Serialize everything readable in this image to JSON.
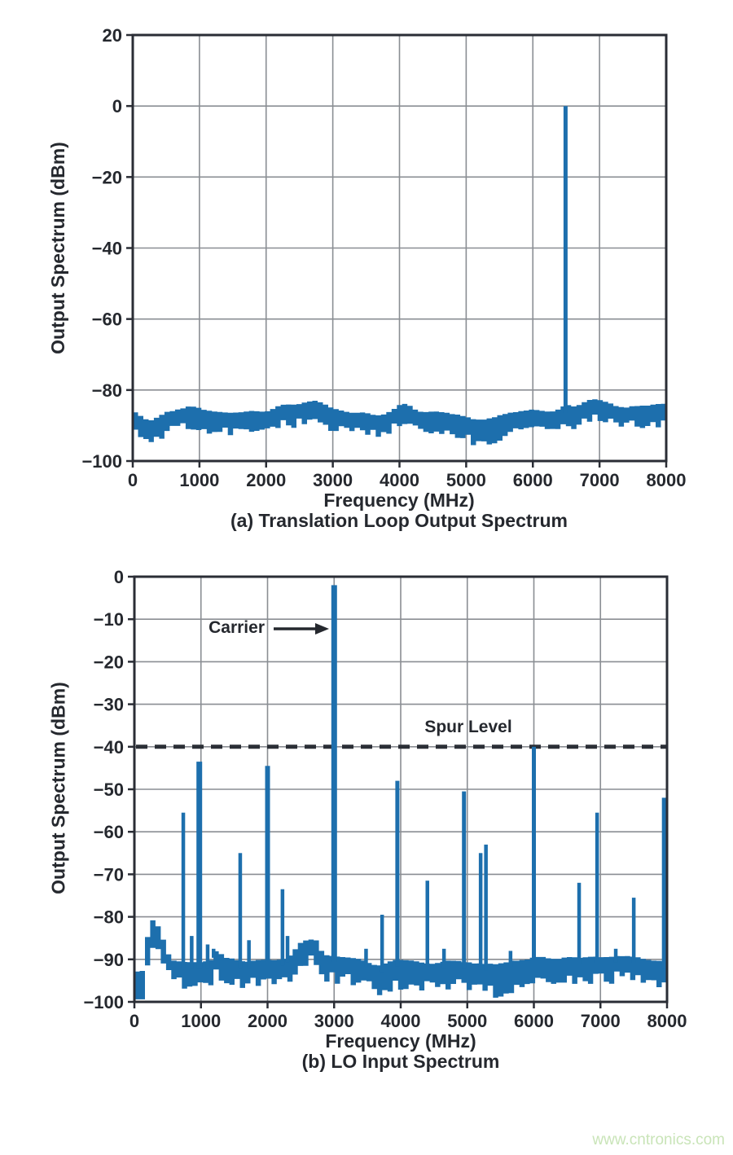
{
  "page": {
    "background": "#ffffff",
    "text_color": "#25282e",
    "watermark": {
      "text": "www.cntronics.com",
      "color": "#c9e4b8"
    }
  },
  "chart_data": [
    {
      "type": "area",
      "title": "(a) Translation Loop Output Spectrum",
      "xlabel": "Frequency (MHz)",
      "ylabel": "Output Spectrum (dBm)",
      "xlim": [
        0,
        8000
      ],
      "ylim": [
        -100,
        20
      ],
      "xticks": [
        0,
        1000,
        2000,
        3000,
        4000,
        5000,
        6000,
        7000,
        8000
      ],
      "xticklabels": [
        "0",
        "1000",
        "2000",
        "3000",
        "4000",
        "5000",
        "6000",
        "7000",
        "8000"
      ],
      "yticks": [
        20,
        0,
        -20,
        -40,
        -60,
        -80,
        -100
      ],
      "yticklabels": [
        "20",
        "0",
        "−20",
        "−40",
        "−60",
        "−80",
        "−100"
      ],
      "grid": true,
      "series_color": "#1d6fad",
      "axis_color": "#2a2d35",
      "grid_color": "#8a8e93",
      "peaks": [
        {
          "freq_mhz": 6490,
          "level_dbm": 0,
          "w": 5
        }
      ],
      "noise_floor": {
        "typical_top_dbm": -85.8,
        "typical_bottom_dbm": -90.5,
        "min_dbm": -93.5,
        "max_dbm": -82.5,
        "top_variation_db": 1.4,
        "thickness_base_db": 4.0,
        "thickness_var_db": 2.6,
        "bumps": [
          [
            900,
            170,
            1.2
          ],
          [
            2650,
            250,
            2.6
          ],
          [
            4050,
            130,
            1.6
          ],
          [
            6500,
            80,
            1.6
          ],
          [
            6950,
            220,
            3.0
          ],
          [
            7800,
            170,
            1.6
          ]
        ],
        "dips": [
          [
            260,
            140,
            -2.6
          ],
          [
            3650,
            220,
            -1.5
          ],
          [
            5150,
            260,
            -2.4
          ]
        ],
        "bottom_dips": [
          [
            250,
            160,
            -1.5
          ],
          [
            5200,
            320,
            -1.0
          ]
        ]
      }
    },
    {
      "type": "area",
      "title": "(b) LO Input Spectrum",
      "xlabel": "Frequency (MHz)",
      "ylabel": "Output Spectrum (dBm)",
      "xlim": [
        0,
        8000
      ],
      "ylim": [
        -100,
        0
      ],
      "xticks": [
        0,
        1000,
        2000,
        3000,
        4000,
        5000,
        6000,
        7000,
        8000
      ],
      "xticklabels": [
        "0",
        "1000",
        "2000",
        "3000",
        "4000",
        "5000",
        "6000",
        "7000",
        "8000"
      ],
      "yticks": [
        0,
        -10,
        -20,
        -30,
        -40,
        -50,
        -60,
        -70,
        -80,
        -90,
        -100
      ],
      "yticklabels": [
        "0",
        "−10",
        "−20",
        "−30",
        "−40",
        "−50",
        "−60",
        "−70",
        "−80",
        "−90",
        "−100"
      ],
      "grid": true,
      "series_color": "#1d6fad",
      "axis_color": "#2a2d35",
      "grid_color": "#8a8e93",
      "carrier": {
        "freq_mhz": 3000,
        "level_dbm": -2,
        "w": 7,
        "label": "Carrier"
      },
      "spur_level_line": {
        "level_dbm": -40,
        "label": "Spur Level",
        "color": "#2b2f36"
      },
      "spurs": [
        {
          "freq_mhz": 734,
          "level_dbm": -55.5
        },
        {
          "freq_mhz": 860,
          "level_dbm": -84.5
        },
        {
          "freq_mhz": 975,
          "level_dbm": -43.5,
          "w": 7
        },
        {
          "freq_mhz": 1100,
          "level_dbm": -86.5
        },
        {
          "freq_mhz": 1190,
          "level_dbm": -87.5
        },
        {
          "freq_mhz": 1590,
          "level_dbm": -65
        },
        {
          "freq_mhz": 1720,
          "level_dbm": -85.5
        },
        {
          "freq_mhz": 2000,
          "level_dbm": -44.5,
          "w": 6
        },
        {
          "freq_mhz": 2225,
          "level_dbm": -73.5
        },
        {
          "freq_mhz": 2300,
          "level_dbm": -84.5
        },
        {
          "freq_mhz": 3480,
          "level_dbm": -87.5
        },
        {
          "freq_mhz": 3720,
          "level_dbm": -79.5
        },
        {
          "freq_mhz": 3950,
          "level_dbm": -48,
          "w": 5
        },
        {
          "freq_mhz": 4400,
          "level_dbm": -71.5
        },
        {
          "freq_mhz": 4650,
          "level_dbm": -87.5
        },
        {
          "freq_mhz": 4950,
          "level_dbm": -50.5,
          "w": 5
        },
        {
          "freq_mhz": 5200,
          "level_dbm": -65
        },
        {
          "freq_mhz": 5280,
          "level_dbm": -63
        },
        {
          "freq_mhz": 5650,
          "level_dbm": -88
        },
        {
          "freq_mhz": 6000,
          "level_dbm": -40,
          "w": 5
        },
        {
          "freq_mhz": 6680,
          "level_dbm": -72
        },
        {
          "freq_mhz": 6950,
          "level_dbm": -55.5
        },
        {
          "freq_mhz": 7230,
          "level_dbm": -87.5
        },
        {
          "freq_mhz": 7500,
          "level_dbm": -75.5
        },
        {
          "freq_mhz": 7960,
          "level_dbm": -52,
          "w": 6
        }
      ],
      "noise_floor": {
        "typical_top_dbm": -90.0,
        "typical_bottom_dbm": -94.0,
        "min_dbm": -97.0,
        "max_dbm": -81.0,
        "top_variation_db": 1.3,
        "thickness_base_db": 3.6,
        "thickness_var_db": 2.8,
        "bumps": [
          [
            240,
            55,
            8.2
          ],
          [
            335,
            45,
            5.8
          ],
          [
            430,
            55,
            4.3
          ],
          [
            1250,
            45,
            2.2
          ],
          [
            2560,
            130,
            4.3
          ],
          [
            2720,
            60,
            2.5
          ],
          [
            6900,
            300,
            0.8
          ]
        ],
        "dips": [
          [
            110,
            60,
            -3.2
          ],
          [
            3680,
            160,
            -1.2
          ],
          [
            4850,
            500,
            -0.8
          ]
        ],
        "bottom_dips": [
          [
            150,
            110,
            -2.8
          ],
          [
            5600,
            550,
            -1.6
          ],
          [
            3800,
            250,
            -0.8
          ]
        ]
      }
    }
  ]
}
